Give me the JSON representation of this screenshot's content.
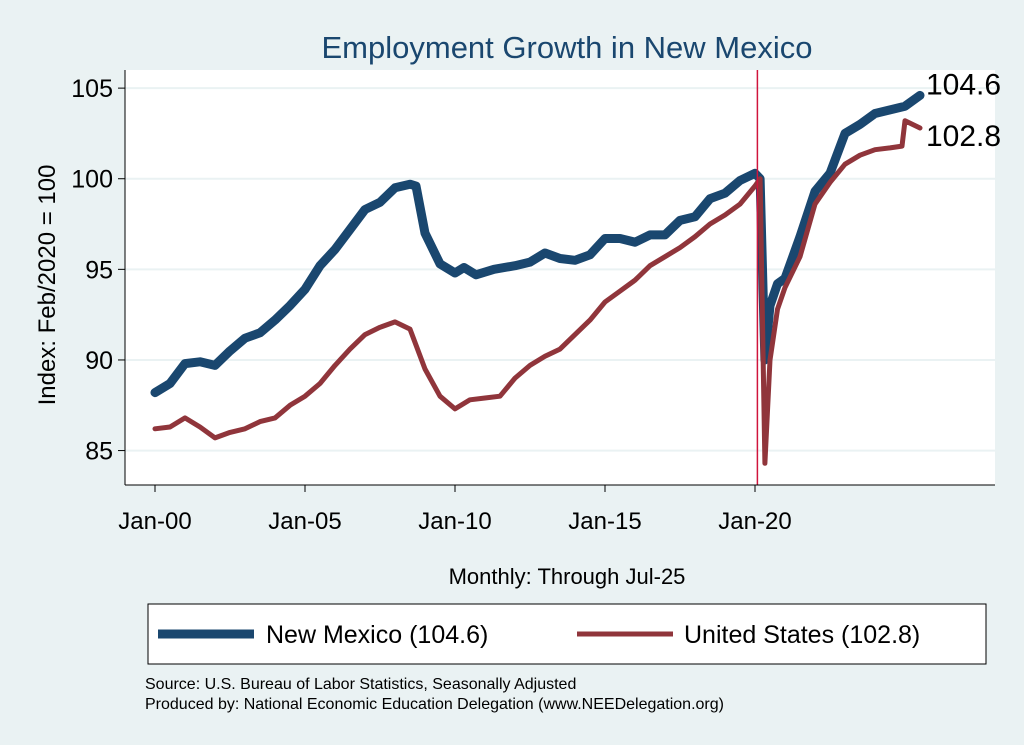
{
  "chart_data": {
    "type": "line",
    "title": "Employment Growth in New Mexico",
    "xlabel": "Monthly: Through Jul-25",
    "ylabel": "Index: Feb/2020 = 100",
    "xlim": [
      1999,
      2028
    ],
    "ylim": [
      83.1,
      106
    ],
    "x_ticks": [
      {
        "x": 2000,
        "label": "Jan-00"
      },
      {
        "x": 2005,
        "label": "Jan-05"
      },
      {
        "x": 2010,
        "label": "Jan-10"
      },
      {
        "x": 2015,
        "label": "Jan-15"
      },
      {
        "x": 2020,
        "label": "Jan-20"
      }
    ],
    "y_ticks": [
      85,
      90,
      95,
      100,
      105
    ],
    "grid": true,
    "reference_line": {
      "x": 2020.08,
      "color": "#d0143c"
    },
    "legend_position": "bottom",
    "series": [
      {
        "name": "New Mexico (104.6)",
        "end_label": "104.6",
        "color": "#1a476f",
        "points": [
          [
            2000.0,
            88.2
          ],
          [
            2000.5,
            88.7
          ],
          [
            2001.0,
            89.8
          ],
          [
            2001.5,
            89.9
          ],
          [
            2002.0,
            89.7
          ],
          [
            2002.5,
            90.5
          ],
          [
            2003.0,
            91.2
          ],
          [
            2003.5,
            91.5
          ],
          [
            2004.0,
            92.2
          ],
          [
            2004.5,
            93.0
          ],
          [
            2005.0,
            93.9
          ],
          [
            2005.5,
            95.2
          ],
          [
            2006.0,
            96.1
          ],
          [
            2006.5,
            97.2
          ],
          [
            2007.0,
            98.3
          ],
          [
            2007.5,
            98.7
          ],
          [
            2008.0,
            99.5
          ],
          [
            2008.5,
            99.7
          ],
          [
            2008.7,
            99.6
          ],
          [
            2009.0,
            97.0
          ],
          [
            2009.5,
            95.3
          ],
          [
            2010.0,
            94.8
          ],
          [
            2010.3,
            95.1
          ],
          [
            2010.7,
            94.7
          ],
          [
            2011.3,
            95.0
          ],
          [
            2012.0,
            95.2
          ],
          [
            2012.5,
            95.4
          ],
          [
            2013.0,
            95.9
          ],
          [
            2013.5,
            95.6
          ],
          [
            2014.0,
            95.5
          ],
          [
            2014.5,
            95.8
          ],
          [
            2015.0,
            96.7
          ],
          [
            2015.5,
            96.7
          ],
          [
            2016.0,
            96.5
          ],
          [
            2016.5,
            96.9
          ],
          [
            2017.0,
            96.9
          ],
          [
            2017.5,
            97.7
          ],
          [
            2018.0,
            97.9
          ],
          [
            2018.5,
            98.9
          ],
          [
            2019.0,
            99.2
          ],
          [
            2019.5,
            99.9
          ],
          [
            2020.0,
            100.3
          ],
          [
            2020.17,
            100.0
          ],
          [
            2020.33,
            90.0
          ],
          [
            2020.5,
            93.0
          ],
          [
            2020.75,
            94.2
          ],
          [
            2021.0,
            94.5
          ],
          [
            2021.5,
            96.8
          ],
          [
            2022.0,
            99.3
          ],
          [
            2022.5,
            100.3
          ],
          [
            2023.0,
            102.5
          ],
          [
            2023.5,
            103.0
          ],
          [
            2024.0,
            103.6
          ],
          [
            2024.5,
            103.8
          ],
          [
            2025.0,
            104.0
          ],
          [
            2025.5,
            104.6
          ]
        ]
      },
      {
        "name": "United States (102.8)",
        "end_label": "102.8",
        "color": "#90353b",
        "points": [
          [
            2000.0,
            86.2
          ],
          [
            2000.5,
            86.3
          ],
          [
            2001.0,
            86.8
          ],
          [
            2001.5,
            86.3
          ],
          [
            2002.0,
            85.7
          ],
          [
            2002.5,
            86.0
          ],
          [
            2003.0,
            86.2
          ],
          [
            2003.5,
            86.6
          ],
          [
            2004.0,
            86.8
          ],
          [
            2004.5,
            87.5
          ],
          [
            2005.0,
            88.0
          ],
          [
            2005.5,
            88.7
          ],
          [
            2006.0,
            89.7
          ],
          [
            2006.5,
            90.6
          ],
          [
            2007.0,
            91.4
          ],
          [
            2007.5,
            91.8
          ],
          [
            2008.0,
            92.1
          ],
          [
            2008.5,
            91.7
          ],
          [
            2009.0,
            89.5
          ],
          [
            2009.5,
            88.0
          ],
          [
            2010.0,
            87.3
          ],
          [
            2010.5,
            87.8
          ],
          [
            2011.0,
            87.9
          ],
          [
            2011.5,
            88.0
          ],
          [
            2012.0,
            89.0
          ],
          [
            2012.5,
            89.7
          ],
          [
            2013.0,
            90.2
          ],
          [
            2013.5,
            90.6
          ],
          [
            2014.0,
            91.4
          ],
          [
            2014.5,
            92.2
          ],
          [
            2015.0,
            93.2
          ],
          [
            2015.5,
            93.8
          ],
          [
            2016.0,
            94.4
          ],
          [
            2016.5,
            95.2
          ],
          [
            2017.0,
            95.7
          ],
          [
            2017.5,
            96.2
          ],
          [
            2018.0,
            96.8
          ],
          [
            2018.5,
            97.5
          ],
          [
            2019.0,
            98.0
          ],
          [
            2019.5,
            98.6
          ],
          [
            2020.0,
            99.6
          ],
          [
            2020.17,
            100.0
          ],
          [
            2020.33,
            84.3
          ],
          [
            2020.5,
            90.0
          ],
          [
            2020.75,
            92.8
          ],
          [
            2021.0,
            94.0
          ],
          [
            2021.5,
            95.7
          ],
          [
            2022.0,
            98.6
          ],
          [
            2022.5,
            99.8
          ],
          [
            2023.0,
            100.8
          ],
          [
            2023.5,
            101.3
          ],
          [
            2024.0,
            101.6
          ],
          [
            2024.5,
            101.7
          ],
          [
            2024.9,
            101.8
          ],
          [
            2025.0,
            103.2
          ],
          [
            2025.5,
            102.8
          ]
        ]
      }
    ]
  },
  "notes": {
    "source": "Source: U.S. Bureau of Labor Statistics, Seasonally Adjusted",
    "produced_by": "Produced by: National Economic Education Delegation (www.NEEDelegation.org)"
  }
}
